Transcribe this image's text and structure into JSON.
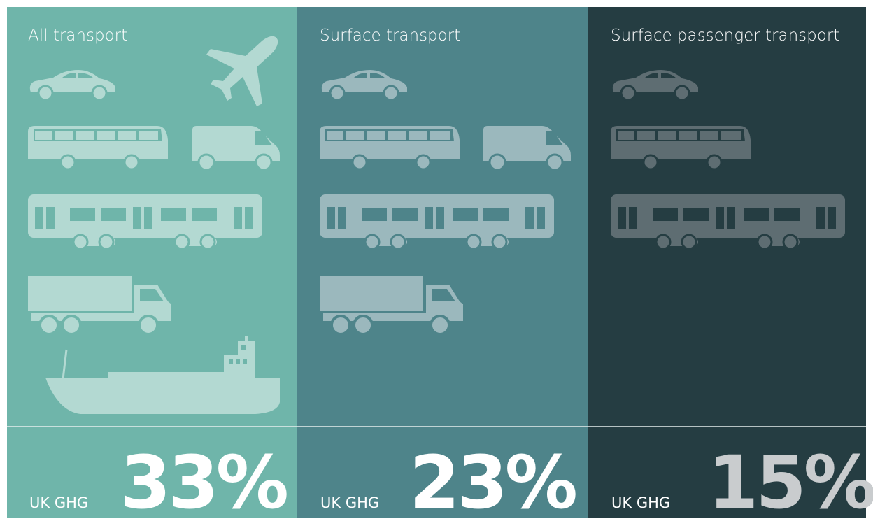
{
  "panels": [
    {
      "title": "All transport",
      "label": "UK GHG",
      "value": "33%"
    },
    {
      "title": "Surface transport",
      "label": "UK GHG",
      "value": "23%"
    },
    {
      "title": "Surface passenger transport",
      "label": "UK GHG",
      "value": "15%"
    }
  ]
}
